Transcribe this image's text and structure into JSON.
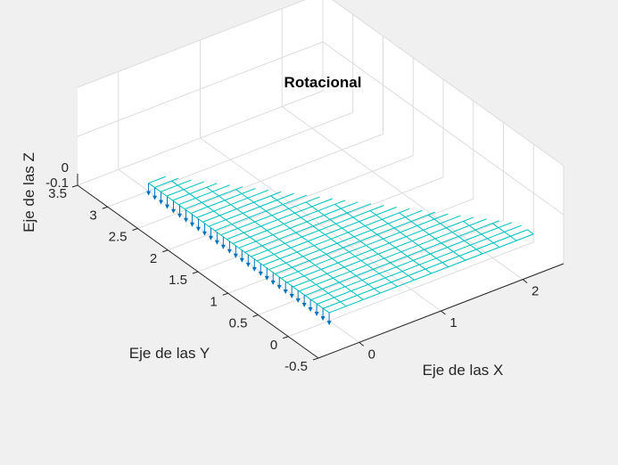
{
  "chart_data": {
    "type": "surface-quiver-3d",
    "title": "Rotacional",
    "xlabel": "Eje de las X",
    "ylabel": "Eje de las Y",
    "zlabel": "Eje de las Z",
    "xlim": [
      -0.5,
      2.5
    ],
    "ylim": [
      -0.5,
      3.5
    ],
    "zlim": [
      -0.1,
      0
    ],
    "xticks": [
      "0",
      "1",
      "2"
    ],
    "yticks": [
      "-0.5",
      "0",
      "0.5",
      "1",
      "1.5",
      "2",
      "2.5",
      "3",
      "3.5"
    ],
    "zticks": [
      "-0.1",
      "0"
    ],
    "grid": true,
    "surface": {
      "z": 0,
      "x_extent": [
        0,
        2.5
      ],
      "y_extent": [
        0,
        3
      ],
      "x_cells": 12,
      "y_cells": 30,
      "region": "triangle",
      "color": "#00BFBF"
    },
    "arrows": {
      "direction": "-z",
      "color": "#0072BD",
      "along_edge": "x=0",
      "count": 30
    }
  }
}
